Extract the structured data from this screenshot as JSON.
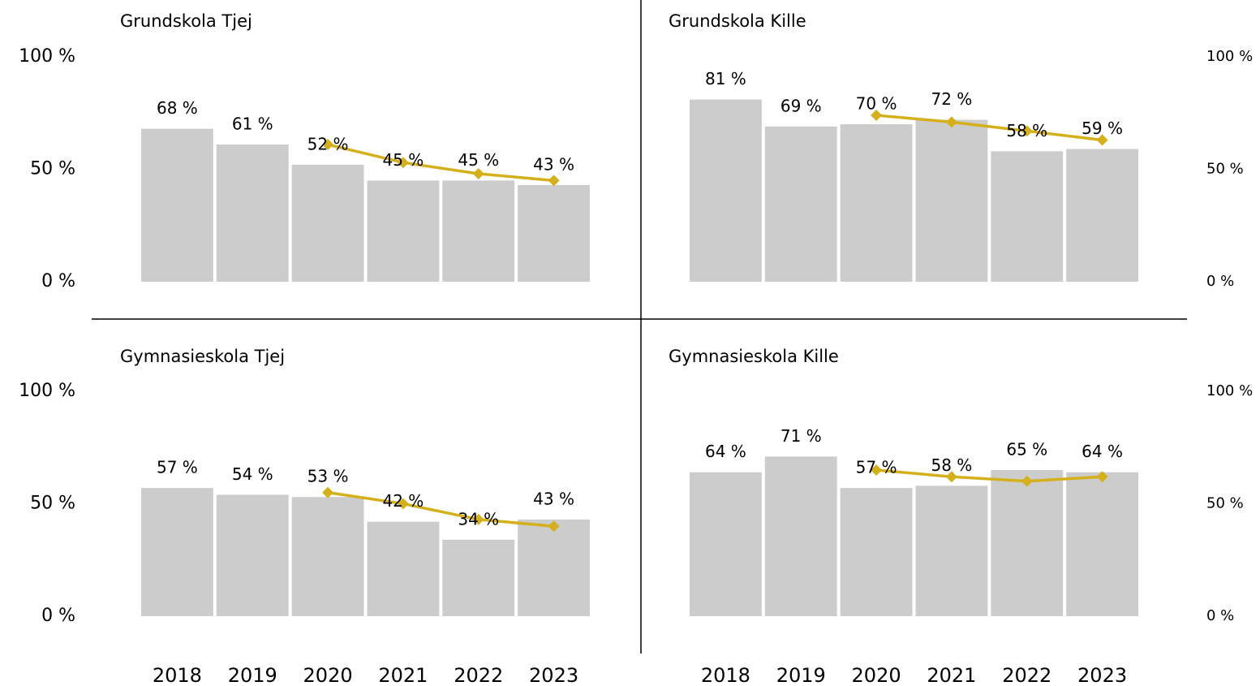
{
  "chart_data": [
    {
      "type": "bar",
      "title": "Grundskola Tjej",
      "yaxis_position": "left",
      "ylim": [
        0,
        100
      ],
      "yticks": [
        {
          "value": 0,
          "label": "0 %"
        },
        {
          "value": 50,
          "label": "50 %"
        },
        {
          "value": 100,
          "label": "100 %"
        }
      ],
      "series": [
        {
          "type": "bar",
          "color": "#cccccc",
          "values": [
            68,
            61,
            52,
            45,
            45,
            43
          ],
          "value_labels": [
            "68 %",
            "61 %",
            "52 %",
            "45 %",
            "45 %",
            "43 %"
          ]
        },
        {
          "type": "line",
          "color": "#d4b11c",
          "values": [
            null,
            null,
            61,
            53,
            48,
            45
          ]
        }
      ]
    },
    {
      "type": "bar",
      "title": "Grundskola Kille",
      "yaxis_position": "right",
      "ylim": [
        0,
        100
      ],
      "yticks": [
        {
          "value": 0,
          "label": "0 %"
        },
        {
          "value": 50,
          "label": "50 %"
        },
        {
          "value": 100,
          "label": "100 %"
        }
      ],
      "series": [
        {
          "type": "bar",
          "color": "#cccccc",
          "values": [
            81,
            69,
            70,
            72,
            58,
            59
          ],
          "value_labels": [
            "81 %",
            "69 %",
            "70 %",
            "72 %",
            "58 %",
            "59 %"
          ]
        },
        {
          "type": "line",
          "color": "#d4b11c",
          "values": [
            null,
            null,
            74,
            71,
            67,
            63
          ]
        }
      ]
    },
    {
      "type": "bar",
      "title": "Gymnasieskola Tjej",
      "yaxis_position": "left",
      "categories": [
        "2018",
        "2019",
        "2020",
        "2021",
        "2022",
        "2023"
      ],
      "ylim": [
        0,
        100
      ],
      "yticks": [
        {
          "value": 0,
          "label": "0 %"
        },
        {
          "value": 50,
          "label": "50 %"
        },
        {
          "value": 100,
          "label": "100 %"
        }
      ],
      "series": [
        {
          "type": "bar",
          "color": "#cccccc",
          "values": [
            57,
            54,
            53,
            42,
            34,
            43
          ],
          "value_labels": [
            "57 %",
            "54 %",
            "53 %",
            "42 %",
            "34 %",
            "43 %"
          ]
        },
        {
          "type": "line",
          "color": "#d4b11c",
          "values": [
            null,
            null,
            55,
            50,
            43,
            40
          ]
        }
      ]
    },
    {
      "type": "bar",
      "title": "Gymnasieskola Kille",
      "yaxis_position": "right",
      "categories": [
        "2018",
        "2019",
        "2020",
        "2021",
        "2022",
        "2023"
      ],
      "ylim": [
        0,
        100
      ],
      "yticks": [
        {
          "value": 0,
          "label": "0 %"
        },
        {
          "value": 50,
          "label": "50 %"
        },
        {
          "value": 100,
          "label": "100 %"
        }
      ],
      "series": [
        {
          "type": "bar",
          "color": "#cccccc",
          "values": [
            64,
            71,
            57,
            58,
            65,
            64
          ],
          "value_labels": [
            "64 %",
            "71 %",
            "57 %",
            "58 %",
            "65 %",
            "64 %"
          ]
        },
        {
          "type": "line",
          "color": "#d4b11c",
          "values": [
            null,
            null,
            65,
            62,
            60,
            62
          ]
        }
      ]
    }
  ]
}
